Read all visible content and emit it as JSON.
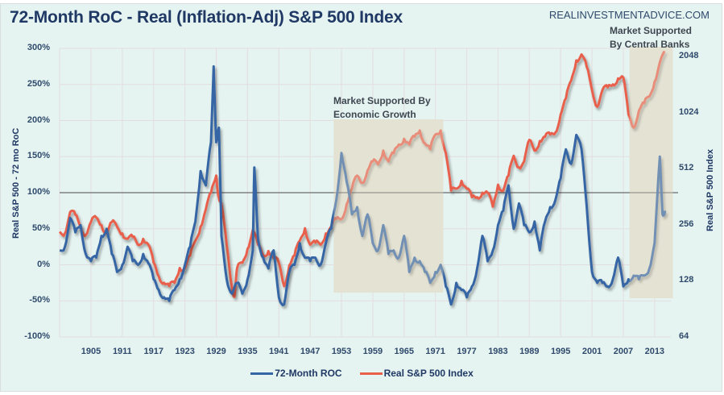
{
  "colors": {
    "roc": "#3465a4",
    "index": "#e8604c",
    "shade": "#e4e3d3",
    "reference_line": "#6b6b6b",
    "grid": "#e3dede"
  },
  "chart_data": {
    "type": "line",
    "title": "72-Month RoC  - Real (Inflation-Adj)  S&P 500 Index",
    "source": "REALINVESTMENTADVICE.COM",
    "xlabel": "",
    "ylabel": "Real S&P 500 - 72 mo RoC",
    "y2label": "Real S&P 500 Index",
    "xlim": [
      1899,
      2016
    ],
    "ylim": [
      -1.0,
      3.0
    ],
    "y2lim": [
      64,
      2048
    ],
    "y2scale": "log2",
    "x_ticks": [
      "1905",
      "1911",
      "1917",
      "1923",
      "1929",
      "1935",
      "1941",
      "1947",
      "1953",
      "1959",
      "1965",
      "1971",
      "1977",
      "1983",
      "1989",
      "1995",
      "2001",
      "2007",
      "2013"
    ],
    "y_ticks": [
      "300%",
      "250%",
      "200%",
      "150%",
      "100%",
      "50%",
      "0%",
      "-50%",
      "-100%"
    ],
    "y_tick_values": [
      3.0,
      2.5,
      2.0,
      1.5,
      1.0,
      0.5,
      0.0,
      -0.5,
      -1.0
    ],
    "y2_ticks": [
      "2048",
      "1024",
      "512",
      "256",
      "128",
      "64"
    ],
    "y2_tick_values": [
      2048,
      1024,
      512,
      256,
      128,
      64
    ],
    "reference_line": {
      "axis": "left",
      "value": 1.0
    },
    "grid": true,
    "legend_position": "bottom",
    "series": [
      {
        "name": "72-Month ROC",
        "axis": "left",
        "x": [
          1899,
          1900,
          1901,
          1902,
          1903,
          1904,
          1905,
          1906,
          1907,
          1908,
          1909,
          1910,
          1911,
          1912,
          1913,
          1914,
          1915,
          1916,
          1917,
          1918,
          1919,
          1920,
          1921,
          1922,
          1923,
          1924,
          1925,
          1926,
          1927,
          1928,
          1928.5,
          1929,
          1929.5,
          1930,
          1931,
          1932,
          1933,
          1934,
          1935,
          1936,
          1936.3,
          1937,
          1938,
          1939,
          1940,
          1941,
          1942,
          1943,
          1944,
          1945,
          1946,
          1947,
          1948,
          1949,
          1950,
          1951,
          1952,
          1953,
          1954,
          1955,
          1956,
          1957,
          1958,
          1959,
          1960,
          1961,
          1962,
          1963,
          1964,
          1965,
          1966,
          1967,
          1968,
          1969,
          1970,
          1971,
          1972,
          1973,
          1974,
          1975,
          1976,
          1977,
          1978,
          1979,
          1980,
          1981,
          1982,
          1983,
          1984,
          1985,
          1986,
          1987,
          1988,
          1989,
          1990,
          1991,
          1992,
          1993,
          1994,
          1995,
          1996,
          1997,
          1998,
          1999,
          2000,
          2001,
          2002,
          2003,
          2004,
          2005,
          2006,
          2007,
          2008,
          2009,
          2010,
          2011,
          2012,
          2013,
          2014,
          2014.5,
          2015
        ],
        "values": [
          0.2,
          0.25,
          0.65,
          0.45,
          0.55,
          0.15,
          0.05,
          0.1,
          0.4,
          0.5,
          0.15,
          -0.1,
          0.0,
          0.25,
          0.05,
          0.0,
          0.15,
          0.02,
          -0.2,
          -0.35,
          -0.45,
          -0.5,
          -0.35,
          -0.2,
          0.0,
          0.25,
          0.6,
          1.3,
          1.1,
          1.7,
          2.75,
          1.7,
          1.9,
          0.4,
          -0.2,
          -0.4,
          -0.25,
          -0.4,
          -0.2,
          0.2,
          1.35,
          0.35,
          0.1,
          -0.05,
          0.2,
          -0.45,
          -0.55,
          -0.1,
          0.0,
          0.3,
          0.1,
          0.05,
          0.1,
          0.0,
          0.3,
          0.5,
          0.9,
          1.55,
          1.15,
          0.7,
          0.8,
          0.4,
          0.7,
          0.3,
          0.2,
          0.55,
          0.15,
          0.2,
          0.1,
          0.4,
          -0.1,
          0.1,
          0.05,
          -0.1,
          -0.25,
          -0.1,
          0.0,
          -0.3,
          -0.55,
          -0.25,
          -0.35,
          -0.45,
          -0.3,
          -0.05,
          0.4,
          0.05,
          0.2,
          0.55,
          0.75,
          1.1,
          0.5,
          0.85,
          0.55,
          0.45,
          0.6,
          0.2,
          0.6,
          0.8,
          0.9,
          1.2,
          1.6,
          1.4,
          1.8,
          1.6,
          0.8,
          -0.1,
          -0.25,
          -0.25,
          -0.3,
          -0.2,
          0.1,
          -0.3,
          -0.2,
          -0.15,
          -0.2,
          -0.15,
          -0.05,
          0.3,
          1.5,
          0.7,
          0.75
        ]
      },
      {
        "name": "Real S&P 500 Index",
        "axis": "right",
        "x": [
          1899,
          1900,
          1901,
          1902,
          1903,
          1904,
          1905,
          1906,
          1907,
          1908,
          1909,
          1910,
          1911,
          1912,
          1913,
          1914,
          1915,
          1916,
          1917,
          1918,
          1919,
          1920,
          1921,
          1922,
          1923,
          1924,
          1925,
          1926,
          1927,
          1928,
          1929,
          1929.5,
          1930,
          1931,
          1932,
          1932.5,
          1933,
          1934,
          1935,
          1936,
          1937,
          1938,
          1939,
          1940,
          1941,
          1942,
          1943,
          1944,
          1945,
          1946,
          1947,
          1948,
          1949,
          1950,
          1951,
          1952,
          1953,
          1954,
          1955,
          1956,
          1957,
          1958,
          1959,
          1960,
          1961,
          1962,
          1963,
          1964,
          1965,
          1966,
          1967,
          1968,
          1969,
          1970,
          1971,
          1972,
          1973,
          1974,
          1975,
          1976,
          1977,
          1978,
          1979,
          1980,
          1981,
          1982,
          1983,
          1984,
          1985,
          1986,
          1987,
          1988,
          1989,
          1990,
          1991,
          1992,
          1993,
          1994,
          1995,
          1996,
          1997,
          1998,
          1999,
          2000,
          2001,
          2002,
          2003,
          2004,
          2005,
          2006,
          2007,
          2008,
          2009,
          2010,
          2011,
          2012,
          2013,
          2014,
          2015
        ],
        "values": [
          235,
          230,
          300,
          290,
          250,
          225,
          265,
          280,
          255,
          230,
          265,
          250,
          230,
          215,
          220,
          200,
          215,
          200,
          160,
          135,
          125,
          120,
          125,
          150,
          150,
          175,
          210,
          250,
          310,
          380,
          470,
          355,
          330,
          200,
          118,
          105,
          150,
          160,
          190,
          240,
          200,
          175,
          185,
          170,
          160,
          120,
          155,
          175,
          210,
          245,
          200,
          205,
          200,
          230,
          250,
          275,
          275,
          330,
          400,
          470,
          430,
          500,
          560,
          540,
          640,
          560,
          620,
          690,
          740,
          690,
          760,
          820,
          700,
          650,
          780,
          820,
          620,
          390,
          400,
          440,
          400,
          360,
          360,
          380,
          380,
          320,
          420,
          390,
          470,
          600,
          520,
          560,
          730,
          640,
          720,
          760,
          780,
          800,
          1000,
          1220,
          1520,
          1950,
          2100,
          1800,
          1350,
          1100,
          1350,
          1400,
          1450,
          1560,
          1580,
          1000,
          850,
          1050,
          1150,
          1250,
          1500,
          1900,
          2150
        ]
      }
    ]
  },
  "annotations": [
    {
      "label": "Market Supported By Economic Growth",
      "lines": [
        "Market Supported By",
        "Economic Growth"
      ],
      "range": [
        1951.5,
        1972.5
      ]
    },
    {
      "label": "Market Supported By Central Banks",
      "lines": [
        "Market Supported",
        "By Central Banks"
      ],
      "range": [
        2008.2,
        2016.5
      ]
    }
  ],
  "legend": [
    {
      "label": "72-Month ROC",
      "color": "#3465a4"
    },
    {
      "label": "Real S&P 500 Index",
      "color": "#e8604c"
    }
  ]
}
